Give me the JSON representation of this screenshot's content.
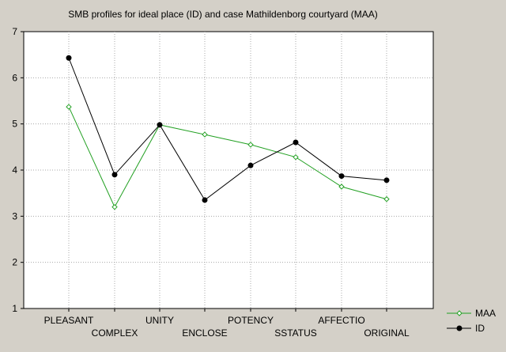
{
  "chart_data": {
    "type": "line",
    "title": "SMB profiles for ideal place (ID) and case Mathildenborg courtyard (MAA)",
    "categories": [
      "PLEASANT",
      "COMPLEX",
      "UNITY",
      "ENCLOSE",
      "POTENCY",
      "SSTATUS",
      "AFFECTIO",
      "ORIGINAL"
    ],
    "ylim": [
      1,
      7
    ],
    "yticks": [
      1,
      2,
      3,
      4,
      5,
      6,
      7
    ],
    "grid": true,
    "legend_position": "bottom-right",
    "series": [
      {
        "name": "MAA",
        "color": "#22a022",
        "marker": "open-diamond",
        "values": [
          5.37,
          3.2,
          4.98,
          4.77,
          4.55,
          4.28,
          3.64,
          3.37
        ]
      },
      {
        "name": "ID",
        "color": "#000000",
        "marker": "filled-circle",
        "values": [
          6.43,
          3.9,
          4.98,
          3.35,
          4.1,
          4.6,
          3.87,
          3.78
        ]
      }
    ]
  }
}
